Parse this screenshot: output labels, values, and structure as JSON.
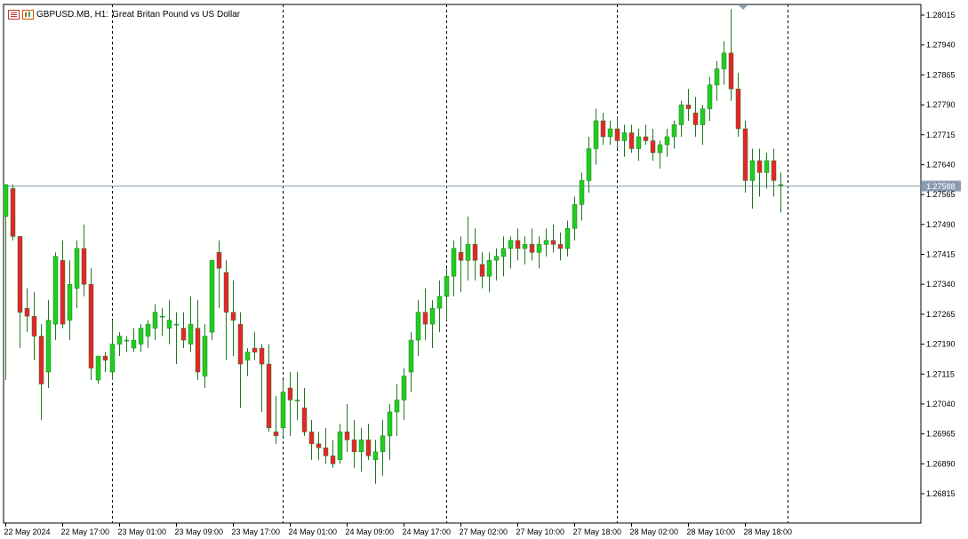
{
  "header": {
    "symbol": "GBPUSD.MB, H1:",
    "description": "Great Britan Pound vs US Dollar",
    "icons": [
      "bars-icon",
      "candles-icon"
    ]
  },
  "colors": {
    "bull": "#22cc22",
    "bear": "#e8242b",
    "wick": "#1e7a1e",
    "grid": "#000000",
    "axis": "#000000",
    "current_price_line": "#8ca0b0",
    "current_price_tag": "#8c9cb0"
  },
  "chart_data": {
    "type": "candlestick",
    "symbol": "GBPUSD.MB",
    "timeframe": "H1",
    "title": "Great Britan Pound vs US Dollar",
    "ylim": [
      1.2675,
      1.2805
    ],
    "y_ticks": [
      "1.28015",
      "1.27940",
      "1.27865",
      "1.27790",
      "1.27715",
      "1.27640",
      "1.27565",
      "1.27490",
      "1.27415",
      "1.27340",
      "1.27265",
      "1.27190",
      "1.27115",
      "1.27040",
      "1.26965",
      "1.26890",
      "1.26815"
    ],
    "x_ticks": [
      "22 May 2024",
      "22 May 17:00",
      "23 May 01:00",
      "23 May 09:00",
      "23 May 17:00",
      "24 May 01:00",
      "24 May 09:00",
      "24 May 17:00",
      "27 May 02:00",
      "27 May 10:00",
      "27 May 18:00",
      "28 May 02:00",
      "28 May 10:00",
      "28 May 18:00"
    ],
    "x_tick_bar_index": [
      0,
      8,
      16,
      24,
      32,
      40,
      48,
      56,
      64,
      72,
      80,
      88,
      96,
      104
    ],
    "period_separators_bar_index": [
      15,
      39,
      62,
      86,
      110
    ],
    "current_price": 1.27588,
    "current_price_label": "1.27588",
    "grid": false,
    "ohlc": [
      [
        1.2751,
        1.2759,
        1.271,
        1.2759
      ],
      [
        1.2758,
        1.2759,
        1.2745,
        1.2746
      ],
      [
        1.2746,
        1.2746,
        1.2718,
        1.2727
      ],
      [
        1.2728,
        1.2733,
        1.2722,
        1.2726
      ],
      [
        1.2726,
        1.2732,
        1.2715,
        1.2721
      ],
      [
        1.2721,
        1.2724,
        1.27,
        1.2709
      ],
      [
        1.2712,
        1.273,
        1.2708,
        1.2725
      ],
      [
        1.2724,
        1.2742,
        1.272,
        1.2741
      ],
      [
        1.274,
        1.2745,
        1.2723,
        1.2724
      ],
      [
        1.2725,
        1.274,
        1.272,
        1.2734
      ],
      [
        1.2733,
        1.2745,
        1.2728,
        1.2743
      ],
      [
        1.2743,
        1.2749,
        1.2731,
        1.2734
      ],
      [
        1.2734,
        1.2738,
        1.271,
        1.2713
      ],
      [
        1.271,
        1.2716,
        1.2709,
        1.2716
      ],
      [
        1.2716,
        1.2717,
        1.2712,
        1.2715
      ],
      [
        1.2712,
        1.2725,
        1.271,
        1.2719
      ],
      [
        1.2719,
        1.2722,
        1.2716,
        1.2721
      ],
      [
        1.272,
        1.2721,
        1.2717,
        1.272
      ],
      [
        1.2718,
        1.2723,
        1.2717,
        1.272
      ],
      [
        1.2719,
        1.2724,
        1.2717,
        1.2723
      ],
      [
        1.2721,
        1.2725,
        1.2718,
        1.2724
      ],
      [
        1.2723,
        1.2729,
        1.272,
        1.2727
      ],
      [
        1.2726,
        1.2728,
        1.2721,
        1.2726
      ],
      [
        1.2723,
        1.273,
        1.2719,
        1.2725
      ],
      [
        1.2724,
        1.2727,
        1.2714,
        1.2724
      ],
      [
        1.2723,
        1.2727,
        1.2718,
        1.272
      ],
      [
        1.2719,
        1.2731,
        1.2717,
        1.2724
      ],
      [
        1.2723,
        1.273,
        1.271,
        1.2712
      ],
      [
        1.2711,
        1.2724,
        1.2708,
        1.2721
      ],
      [
        1.2722,
        1.274,
        1.272,
        1.274
      ],
      [
        1.2742,
        1.2745,
        1.2728,
        1.2738
      ],
      [
        1.2737,
        1.274,
        1.2715,
        1.2727
      ],
      [
        1.2727,
        1.2735,
        1.2716,
        1.2725
      ],
      [
        1.2724,
        1.2727,
        1.2703,
        1.2714
      ],
      [
        1.2715,
        1.2718,
        1.2711,
        1.2717
      ],
      [
        1.2718,
        1.2722,
        1.2715,
        1.2717
      ],
      [
        1.2718,
        1.2719,
        1.2702,
        1.2714
      ],
      [
        1.2714,
        1.2719,
        1.2697,
        1.2698
      ],
      [
        1.2697,
        1.2706,
        1.2694,
        1.2696
      ],
      [
        1.2698,
        1.271,
        1.2696,
        1.2707
      ],
      [
        1.2708,
        1.2712,
        1.2696,
        1.2705
      ],
      [
        1.2705,
        1.2712,
        1.27,
        1.2705
      ],
      [
        1.2703,
        1.2708,
        1.2696,
        1.2697
      ],
      [
        1.2697,
        1.27,
        1.269,
        1.2694
      ],
      [
        1.2694,
        1.2697,
        1.269,
        1.2693
      ],
      [
        1.2693,
        1.2698,
        1.2689,
        1.2691
      ],
      [
        1.2691,
        1.2695,
        1.2688,
        1.2689
      ],
      [
        1.269,
        1.2699,
        1.2689,
        1.2697
      ],
      [
        1.2697,
        1.2704,
        1.2692,
        1.2695
      ],
      [
        1.2695,
        1.27,
        1.2688,
        1.2692
      ],
      [
        1.2692,
        1.2698,
        1.2687,
        1.2695
      ],
      [
        1.2695,
        1.2699,
        1.269,
        1.2691
      ],
      [
        1.269,
        1.2695,
        1.2684,
        1.2692
      ],
      [
        1.2692,
        1.27,
        1.2686,
        1.2696
      ],
      [
        1.2696,
        1.2704,
        1.269,
        1.2702
      ],
      [
        1.2702,
        1.2709,
        1.2696,
        1.2705
      ],
      [
        1.2705,
        1.2713,
        1.27,
        1.2711
      ],
      [
        1.2712,
        1.2722,
        1.2707,
        1.272
      ],
      [
        1.272,
        1.273,
        1.2716,
        1.2727
      ],
      [
        1.2727,
        1.2733,
        1.272,
        1.2724
      ],
      [
        1.2724,
        1.273,
        1.2718,
        1.2728
      ],
      [
        1.2728,
        1.2735,
        1.2722,
        1.2731
      ],
      [
        1.2731,
        1.2738,
        1.2725,
        1.2736
      ],
      [
        1.2736,
        1.2745,
        1.2731,
        1.2743
      ],
      [
        1.2742,
        1.2746,
        1.2732,
        1.274
      ],
      [
        1.274,
        1.2751,
        1.2735,
        1.2744
      ],
      [
        1.2744,
        1.2748,
        1.2735,
        1.274
      ],
      [
        1.2739,
        1.2742,
        1.2733,
        1.2736
      ],
      [
        1.2736,
        1.2742,
        1.2732,
        1.274
      ],
      [
        1.274,
        1.2743,
        1.2735,
        1.2741
      ],
      [
        1.2741,
        1.2746,
        1.2736,
        1.2743
      ],
      [
        1.2743,
        1.2746,
        1.2738,
        1.2745
      ],
      [
        1.2745,
        1.2748,
        1.274,
        1.2743
      ],
      [
        1.2743,
        1.2746,
        1.2739,
        1.2744
      ],
      [
        1.2744,
        1.2748,
        1.274,
        1.2742
      ],
      [
        1.2742,
        1.2746,
        1.2738,
        1.2744
      ],
      [
        1.2744,
        1.2748,
        1.2741,
        1.2745
      ],
      [
        1.2745,
        1.2749,
        1.2742,
        1.2744
      ],
      [
        1.2744,
        1.2747,
        1.274,
        1.2743
      ],
      [
        1.2743,
        1.275,
        1.2741,
        1.2748
      ],
      [
        1.2748,
        1.2756,
        1.2745,
        1.2754
      ],
      [
        1.2754,
        1.2762,
        1.275,
        1.276
      ],
      [
        1.276,
        1.2771,
        1.2757,
        1.2768
      ],
      [
        1.2768,
        1.2778,
        1.2764,
        1.2775
      ],
      [
        1.2775,
        1.2777,
        1.2769,
        1.2771
      ],
      [
        1.2771,
        1.2775,
        1.2769,
        1.2773
      ],
      [
        1.2773,
        1.2776,
        1.2768,
        1.277
      ],
      [
        1.277,
        1.2774,
        1.2766,
        1.2772
      ],
      [
        1.2772,
        1.2774,
        1.2767,
        1.2768
      ],
      [
        1.2768,
        1.2773,
        1.2765,
        1.2771
      ],
      [
        1.2771,
        1.2774,
        1.2769,
        1.277
      ],
      [
        1.277,
        1.2773,
        1.2765,
        1.2767
      ],
      [
        1.2767,
        1.277,
        1.2763,
        1.2769
      ],
      [
        1.2769,
        1.2773,
        1.2766,
        1.2771
      ],
      [
        1.2771,
        1.2775,
        1.2768,
        1.2774
      ],
      [
        1.2774,
        1.278,
        1.2771,
        1.2779
      ],
      [
        1.2779,
        1.2783,
        1.2775,
        1.2778
      ],
      [
        1.2777,
        1.2781,
        1.2771,
        1.2774
      ],
      [
        1.2774,
        1.2779,
        1.2769,
        1.2778
      ],
      [
        1.2778,
        1.2786,
        1.2775,
        1.2784
      ],
      [
        1.2784,
        1.279,
        1.278,
        1.2788
      ],
      [
        1.2788,
        1.2795,
        1.2784,
        1.2792
      ],
      [
        1.2792,
        1.2803,
        1.278,
        1.2783
      ],
      [
        1.2783,
        1.2787,
        1.2771,
        1.2773
      ],
      [
        1.2773,
        1.2775,
        1.2757,
        1.276
      ],
      [
        1.276,
        1.2768,
        1.2753,
        1.2765
      ],
      [
        1.2765,
        1.2768,
        1.2756,
        1.2762
      ],
      [
        1.2762,
        1.2767,
        1.2758,
        1.2765
      ],
      [
        1.2765,
        1.2768,
        1.2756,
        1.276
      ],
      [
        1.2759,
        1.2762,
        1.2752,
        1.2759
      ]
    ]
  }
}
